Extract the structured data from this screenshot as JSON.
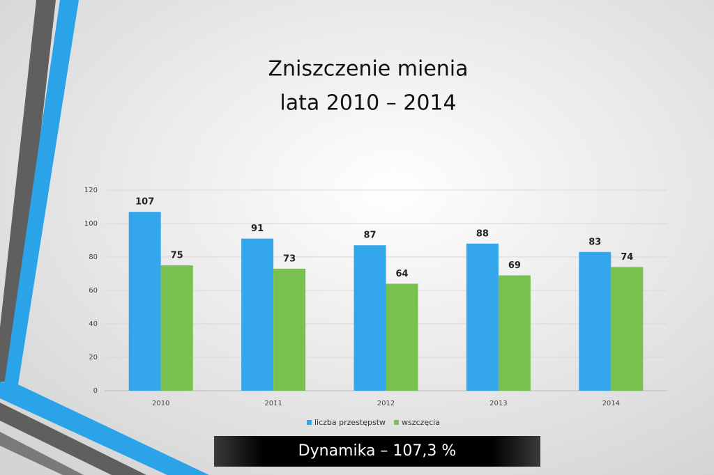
{
  "chart_data": {
    "type": "bar",
    "title": "Zniszczenie mienia",
    "subtitle": "lata 2010 – 2014",
    "categories": [
      "2010",
      "2011",
      "2012",
      "2013",
      "2014"
    ],
    "series": [
      {
        "name": "liczba przestępstw",
        "color": "#33a6ec",
        "values": [
          107,
          91,
          87,
          88,
          83
        ]
      },
      {
        "name": "wszczęcia",
        "color": "#78c150",
        "values": [
          75,
          73,
          64,
          69,
          74
        ]
      }
    ],
    "ylim": [
      0,
      120
    ],
    "yticks": [
      0,
      20,
      40,
      60,
      80,
      100,
      120
    ],
    "grid": true,
    "annotation": "Dynamika – 107,3 %"
  }
}
